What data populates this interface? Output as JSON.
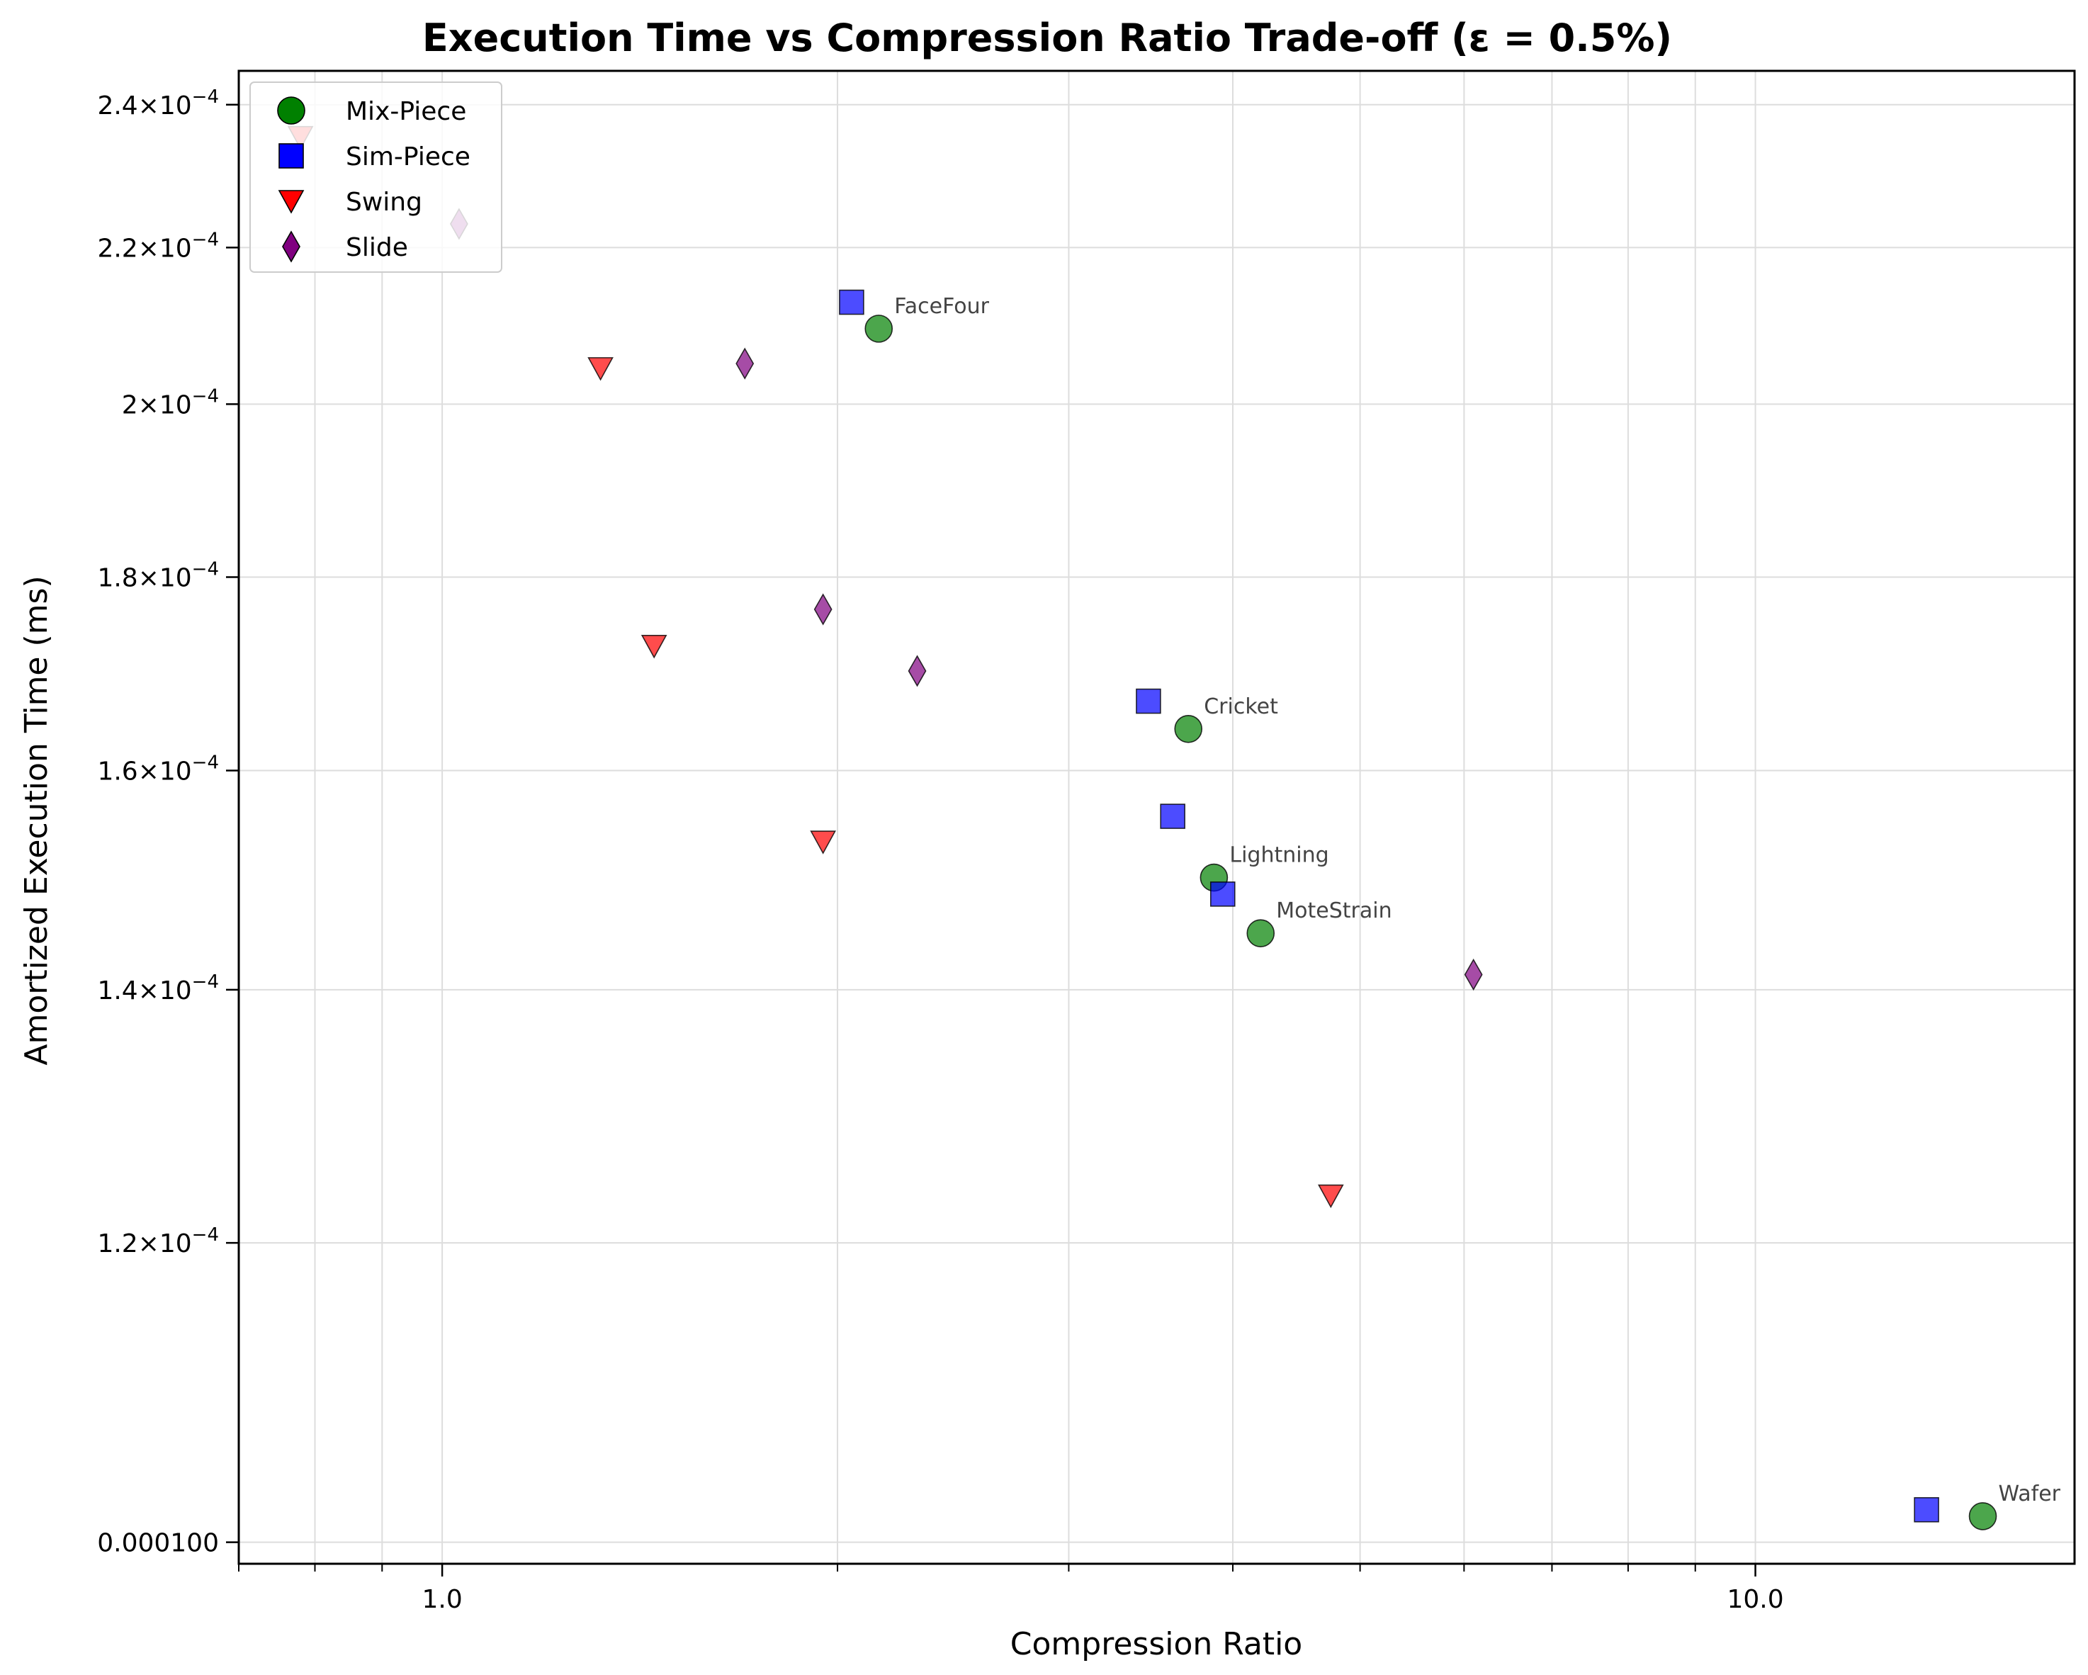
{
  "chart_data": {
    "type": "scatter",
    "title": "Execution Time vs Compression Ratio Trade-off (ε = 0.5%)",
    "xlabel": "Compression Ratio",
    "ylabel": "Amortized Execution Time (ms)",
    "xscale": "log",
    "yscale": "log",
    "xlim": [
      0.7,
      17.5
    ],
    "ylim": [
      9.87e-05,
      0.000245
    ],
    "grid": true,
    "legend_position": "top-left",
    "x_tick_labels": [
      {
        "value": 1.0,
        "label": "1.0"
      },
      {
        "value": 10.0,
        "label": "10.0"
      }
    ],
    "x_minor_ticks": [
      0.7,
      0.8,
      0.9,
      2,
      3,
      4,
      5,
      6,
      7,
      8,
      9
    ],
    "y_tick_labels": [
      {
        "value": 0.00024,
        "base": "2.4",
        "exp": "−4"
      },
      {
        "value": 0.00022,
        "base": "2.2",
        "exp": "−4"
      },
      {
        "value": 0.0002,
        "base": "2",
        "exp": "−4"
      },
      {
        "value": 0.00018,
        "base": "1.8",
        "exp": "−4"
      },
      {
        "value": 0.00016,
        "base": "1.6",
        "exp": "−4"
      },
      {
        "value": 0.00014,
        "base": "1.4",
        "exp": "−4"
      },
      {
        "value": 0.00012,
        "base": "1.2",
        "exp": "−4"
      },
      {
        "value": 0.0001,
        "plain": "0.000100"
      }
    ],
    "series": [
      {
        "name": "Mix-Piece",
        "marker": "circle",
        "color": "#008000",
        "points": [
          {
            "x": 2.15,
            "y": 0.0002094,
            "label": "FaceFour"
          },
          {
            "x": 3.7,
            "y": 0.0001641,
            "label": "Cricket"
          },
          {
            "x": 3.87,
            "y": 0.0001499,
            "label": "Lightning"
          },
          {
            "x": 4.2,
            "y": 0.0001449,
            "label": "MoteStrain"
          },
          {
            "x": 14.9,
            "y": 0.0001016,
            "label": "Wafer"
          }
        ]
      },
      {
        "name": "Sim-Piece",
        "marker": "square",
        "color": "#0000ff",
        "points": [
          {
            "x": 2.05,
            "y": 0.0002128
          },
          {
            "x": 3.45,
            "y": 0.0001669
          },
          {
            "x": 3.6,
            "y": 0.0001556
          },
          {
            "x": 3.93,
            "y": 0.0001484
          },
          {
            "x": 13.5,
            "y": 0.000102
          }
        ]
      },
      {
        "name": "Swing",
        "marker": "triangle-down",
        "color": "#ff0000",
        "points": [
          {
            "x": 0.78,
            "y": 0.0002353
          },
          {
            "x": 1.32,
            "y": 0.0002044
          },
          {
            "x": 1.45,
            "y": 0.0001726
          },
          {
            "x": 1.95,
            "y": 0.0001532
          },
          {
            "x": 4.75,
            "y": 0.0001235
          }
        ]
      },
      {
        "name": "Slide",
        "marker": "diamond",
        "color": "#800080",
        "points": [
          {
            "x": 1.03,
            "y": 0.0002232
          },
          {
            "x": 1.7,
            "y": 0.000205
          },
          {
            "x": 1.95,
            "y": 0.0001765
          },
          {
            "x": 2.3,
            "y": 0.00017
          },
          {
            "x": 6.1,
            "y": 0.0001413
          }
        ]
      }
    ]
  }
}
